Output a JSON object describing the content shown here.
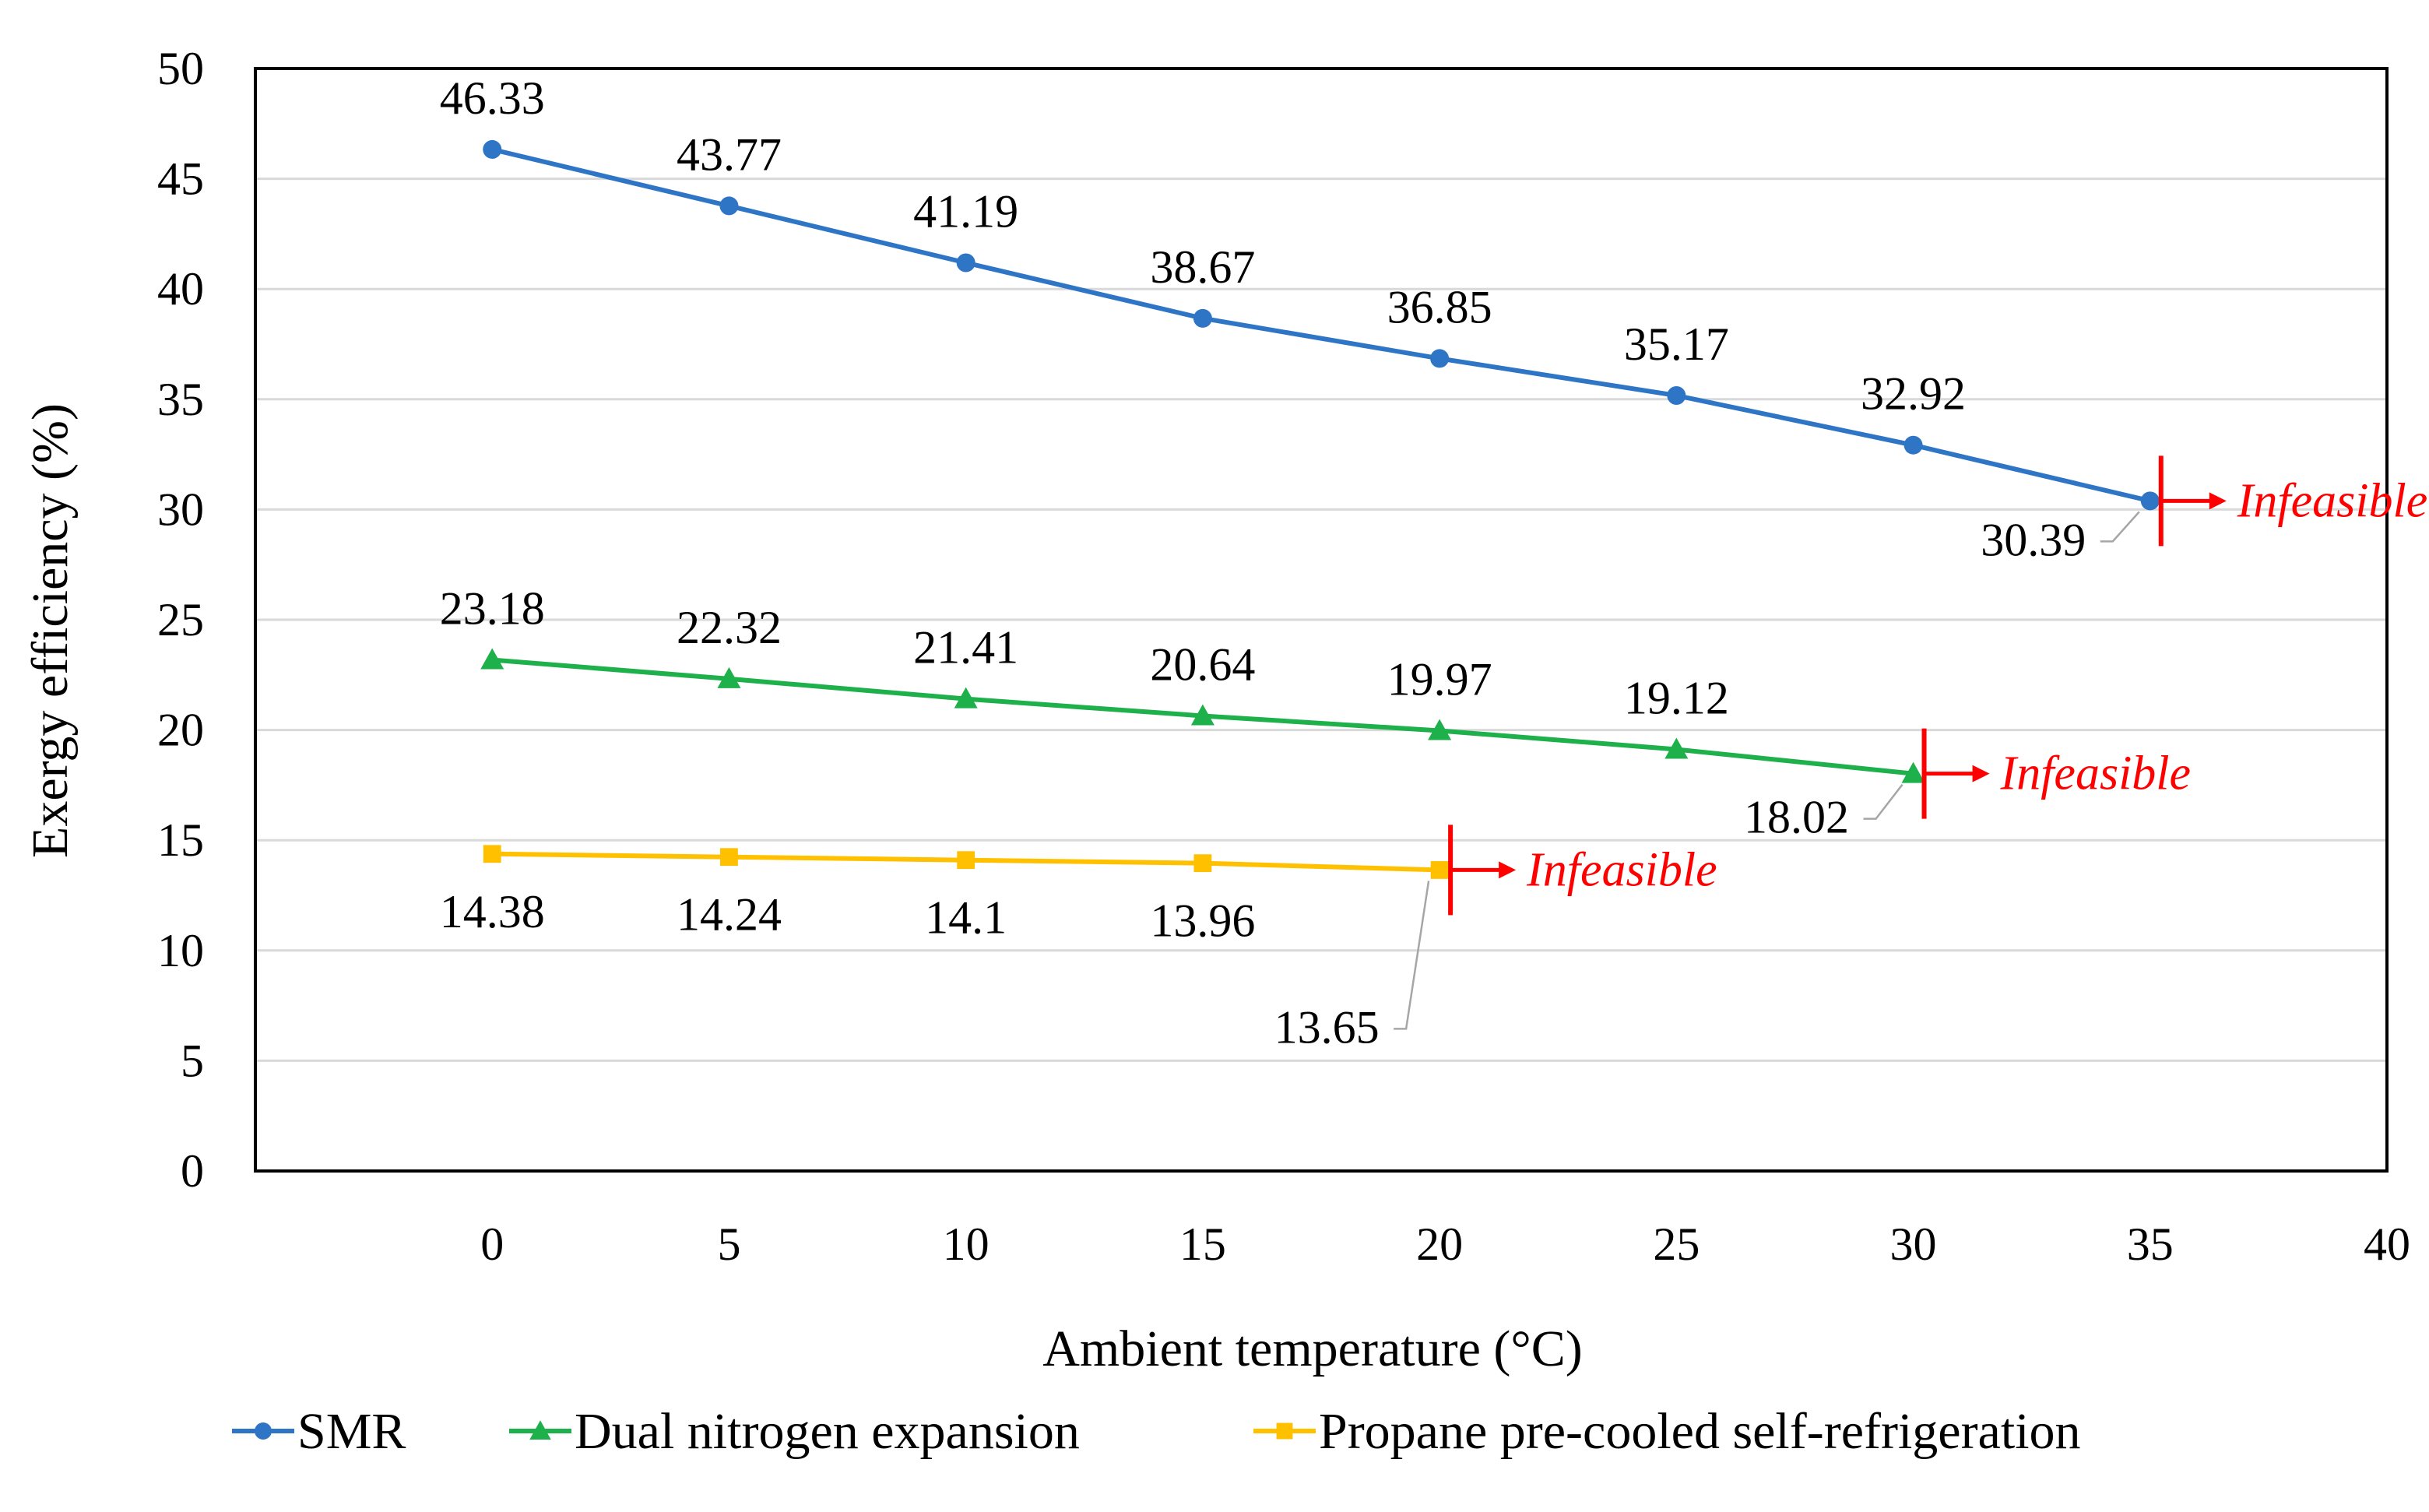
{
  "chart_data": {
    "type": "line",
    "xlabel": "Ambient temperature (°C)",
    "ylabel": "Exergy efficiency (%)",
    "xlim": [
      -5,
      40
    ],
    "ylim": [
      0,
      50
    ],
    "x_ticks": [
      0,
      5,
      10,
      15,
      20,
      25,
      30,
      35,
      40
    ],
    "y_ticks": [
      0,
      5,
      10,
      15,
      20,
      25,
      30,
      35,
      40,
      45,
      50
    ],
    "grid": "horizontal",
    "legend_position": "bottom",
    "series": [
      {
        "name": "SMR",
        "color": "#2E75C6",
        "marker": "circle",
        "x": [
          0,
          5,
          10,
          15,
          20,
          25,
          30,
          35
        ],
        "values": [
          46.33,
          43.77,
          41.19,
          38.67,
          36.85,
          35.17,
          32.92,
          30.39
        ],
        "labels": [
          "46.33",
          "43.77",
          "41.19",
          "38.67",
          "36.85",
          "35.17",
          "32.92",
          "30.39"
        ]
      },
      {
        "name": "Dual nitrogen expansion",
        "color": "#1DB04B",
        "marker": "triangle",
        "x": [
          0,
          5,
          10,
          15,
          20,
          25,
          30
        ],
        "values": [
          23.18,
          22.32,
          21.41,
          20.64,
          19.97,
          19.12,
          18.02
        ],
        "labels": [
          "23.18",
          "22.32",
          "21.41",
          "20.64",
          "19.97",
          "19.12",
          "18.02"
        ]
      },
      {
        "name": "Propane pre-cooled self-refrigeration",
        "color": "#FFC000",
        "marker": "square",
        "x": [
          0,
          5,
          10,
          15,
          20
        ],
        "values": [
          14.38,
          14.24,
          14.1,
          13.96,
          13.65
        ],
        "labels": [
          "14.38",
          "14.24",
          "14.1",
          "13.96",
          "13.65"
        ]
      }
    ],
    "annotations": [
      {
        "series": "SMR",
        "text": "Infeasible",
        "x": 35,
        "y": 30.39,
        "color": "#FF0000"
      },
      {
        "series": "Dual nitrogen expansion",
        "text": "Infeasible",
        "x": 30,
        "y": 18.02,
        "color": "#FF0000"
      },
      {
        "series": "Propane pre-cooled self-refrigeration",
        "text": "Infeasible",
        "x": 20,
        "y": 13.65,
        "color": "#FF0000"
      }
    ]
  }
}
